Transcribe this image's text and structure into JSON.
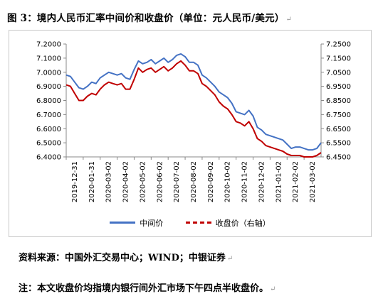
{
  "title": "图 3：境内人民币汇率中间价和收盘价（单位：元人民币/美元）",
  "source": "资料来源：中国外汇交易中心；WIND；中银证券",
  "note": "注：本文收盘价均指境内银行间外汇市场下午四点半收盘价。",
  "paragraph_mark": "↵",
  "colors": {
    "mid": "#4472C4",
    "close": "#C00000"
  },
  "chart_data": {
    "type": "line",
    "x_labels": [
      "2019-12-31",
      "2020-01-31",
      "2020-03-02",
      "2020-04-02",
      "2020-05-02",
      "2020-06-02",
      "2020-07-02",
      "2020-08-02",
      "2020-09-02",
      "2020-10-02",
      "2020-11-02",
      "2020-12-02",
      "2021-01-02",
      "2021-02-02",
      "2021-03-02"
    ],
    "y_left": {
      "min": 6.4,
      "max": 7.2,
      "ticks": [
        "6.4000",
        "6.5000",
        "6.6000",
        "6.7000",
        "6.8000",
        "6.9000",
        "7.0000",
        "7.1000",
        "7.2000"
      ]
    },
    "y_right": {
      "min": 6.45,
      "max": 7.25,
      "ticks": [
        "6.4500",
        "6.5500",
        "6.6500",
        "6.7500",
        "6.8500",
        "6.9500",
        "7.0500",
        "7.1500",
        "7.2500"
      ]
    },
    "series": [
      {
        "name": "中间价",
        "axis": "left",
        "values": [
          6.98,
          6.97,
          6.93,
          6.89,
          6.88,
          6.9,
          6.93,
          6.92,
          6.96,
          6.98,
          7.0,
          6.99,
          6.98,
          6.99,
          6.96,
          6.95,
          7.02,
          7.08,
          7.06,
          7.07,
          7.09,
          7.06,
          7.08,
          7.1,
          7.07,
          7.09,
          7.12,
          7.13,
          7.11,
          7.07,
          7.07,
          7.05,
          6.98,
          6.96,
          6.93,
          6.9,
          6.86,
          6.84,
          6.82,
          6.78,
          6.72,
          6.71,
          6.7,
          6.73,
          6.69,
          6.61,
          6.59,
          6.56,
          6.55,
          6.54,
          6.53,
          6.52,
          6.49,
          6.46,
          6.47,
          6.47,
          6.46,
          6.45,
          6.45,
          6.46,
          6.5
        ]
      },
      {
        "name": "收盘价（右轴）",
        "axis": "right",
        "values": [
          6.96,
          6.95,
          6.9,
          6.85,
          6.85,
          6.88,
          6.9,
          6.89,
          6.93,
          6.96,
          6.98,
          6.97,
          6.96,
          6.97,
          6.93,
          6.93,
          7.0,
          7.08,
          7.05,
          7.07,
          7.08,
          7.05,
          7.07,
          7.09,
          7.06,
          7.08,
          7.11,
          7.13,
          7.1,
          7.06,
          7.06,
          7.04,
          6.97,
          6.95,
          6.92,
          6.89,
          6.84,
          6.81,
          6.79,
          6.75,
          6.7,
          6.69,
          6.67,
          6.7,
          6.65,
          6.58,
          6.56,
          6.53,
          6.52,
          6.51,
          6.5,
          6.49,
          6.47,
          6.46,
          6.46,
          6.46,
          6.45,
          6.45,
          6.45,
          6.46,
          6.48
        ]
      }
    ],
    "grid": false,
    "legend_position": "bottom"
  }
}
